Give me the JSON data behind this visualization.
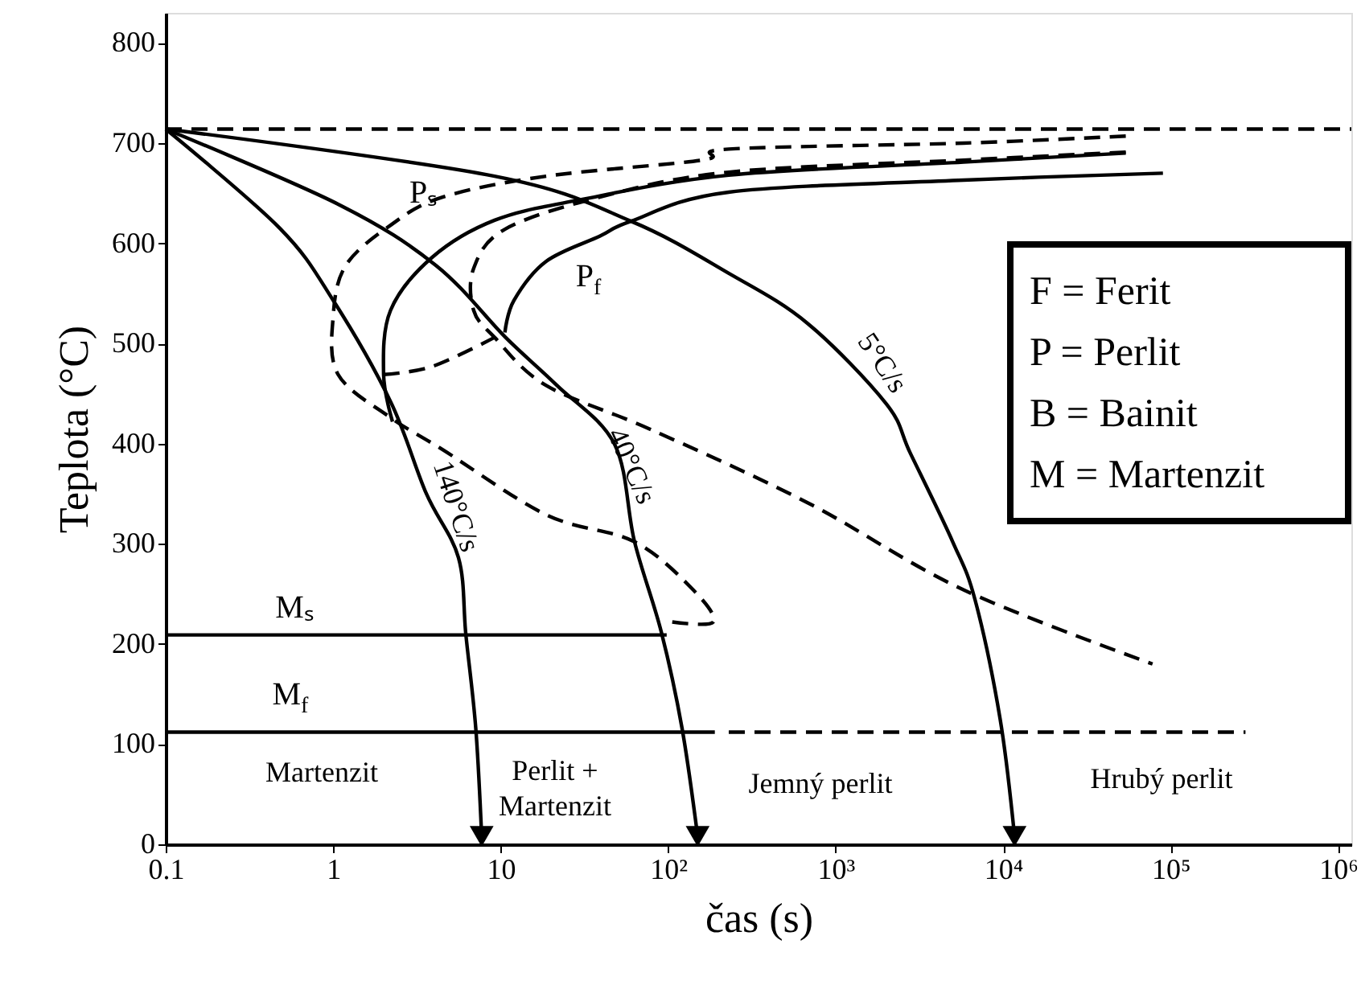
{
  "chart_data": {
    "type": "line",
    "xlabel": "čas (s)",
    "ylabel": "Teplota (°C)",
    "log": "x",
    "grid": false,
    "xlim": [
      0.1,
      1200000
    ],
    "ylim": [
      0,
      830
    ],
    "xticks": [
      {
        "value": 0.1,
        "label": "0.1"
      },
      {
        "value": 1,
        "label": "1"
      },
      {
        "value": 10,
        "label": "10"
      },
      {
        "value": 100,
        "label": "10²"
      },
      {
        "value": 1000,
        "label": "10³"
      },
      {
        "value": 10000,
        "label": "10⁴"
      },
      {
        "value": 100000,
        "label": "10⁵"
      },
      {
        "value": 1000000,
        "label": "10⁶"
      }
    ],
    "yticks": [
      0,
      100,
      200,
      300,
      400,
      500,
      600,
      700,
      800
    ],
    "series": [
      {
        "color": "#000000",
        "line_style": "dashed",
        "x": [
          0.1,
          1200000
        ],
        "values": [
          714,
          714
        ]
      },
      {
        "color": "#000000",
        "line_style": "solid",
        "x": [
          0.1,
          0.48,
          1,
          2.2,
          3.6,
          5.6,
          6.2,
          7.1,
          7.7
        ],
        "values": [
          714,
          615,
          543,
          442,
          350,
          286,
          209,
          116,
          8
        ]
      },
      {
        "color": "#000000",
        "line_style": "solid",
        "x": [
          0.1,
          1.07,
          4.1,
          10.7,
          21.7,
          48,
          63,
          91,
          121,
          150
        ],
        "values": [
          714,
          639,
          578,
          506,
          458,
          399,
          302,
          212,
          116,
          8
        ]
      },
      {
        "color": "#000000",
        "line_style": "solid",
        "x": [
          0.1,
          9.2,
          60,
          230,
          680,
          2000,
          2800,
          5000,
          6800,
          9600,
          11700
        ],
        "values": [
          714,
          667,
          622,
          570,
          520,
          440,
          390,
          302,
          244,
          125,
          8
        ]
      },
      {
        "color": "#000000",
        "line_style": "dashed",
        "x": [
          54000,
          5800,
          230,
          160,
          18.7,
          4.5,
          2.2,
          1.19,
          1,
          1.07,
          2.2,
          4.5,
          18.7,
          63,
          141,
          186,
          105
        ],
        "values": [
          707,
          700,
          694,
          683,
          667,
          646,
          618,
          578,
          527,
          469,
          426,
          394,
          329,
          302,
          254,
          222,
          222
        ]
      },
      {
        "color": "#000000",
        "line_style": "dashed",
        "x": [
          54000,
          5800,
          230,
          39,
          10.6,
          6.9,
          6.9,
          9.2,
          18.7,
          79,
          680,
          5800,
          78000
        ],
        "values": [
          691,
          683,
          671,
          646,
          614,
          575,
          533,
          506,
          458,
          414,
          341,
          254,
          180
        ]
      },
      {
        "color": "#000000",
        "line_style": "dashed",
        "x": [
          2.0,
          3.9,
          9.2
        ],
        "values": [
          469,
          477,
          506
        ]
      },
      {
        "color": "#000000",
        "line_style": "solid",
        "x": [
          2.26,
          2.0,
          2.2,
          3.9,
          9.2,
          29,
          230,
          5800,
          54000
        ],
        "values": [
          422,
          469,
          533,
          586,
          623,
          643,
          668,
          681,
          690
        ]
      },
      {
        "color": "#000000",
        "line_style": "solid",
        "x": [
          10.6,
          12,
          18.7,
          39,
          60,
          230,
          5800,
          90000
        ],
        "values": [
          511,
          543,
          582,
          607,
          622,
          651,
          663,
          670
        ]
      },
      {
        "color": "#000000",
        "line_style": "solid",
        "x": [
          0.1,
          98
        ],
        "values": [
          209,
          209
        ]
      },
      {
        "color": "#000000",
        "line_style": "solid",
        "x": [
          0.1,
          190
        ],
        "values": [
          112,
          112
        ]
      },
      {
        "color": "#000000",
        "line_style": "dashed",
        "x": [
          230,
          280000
        ],
        "values": [
          112,
          112
        ]
      }
    ],
    "annotations": [
      "Pₛ",
      "P$_{f}$",
      "Mₛ",
      "M$_{f}$",
      "Martenzit",
      "Perlit +\nMartenzit",
      "Jemný perlit",
      "Hrubý perlit",
      "140°C/s",
      "40°C/s",
      "5°C/s",
      "F  = Ferit",
      "P  = Perlit",
      "B  = Bainit",
      "M = Martenzit"
    ]
  }
}
